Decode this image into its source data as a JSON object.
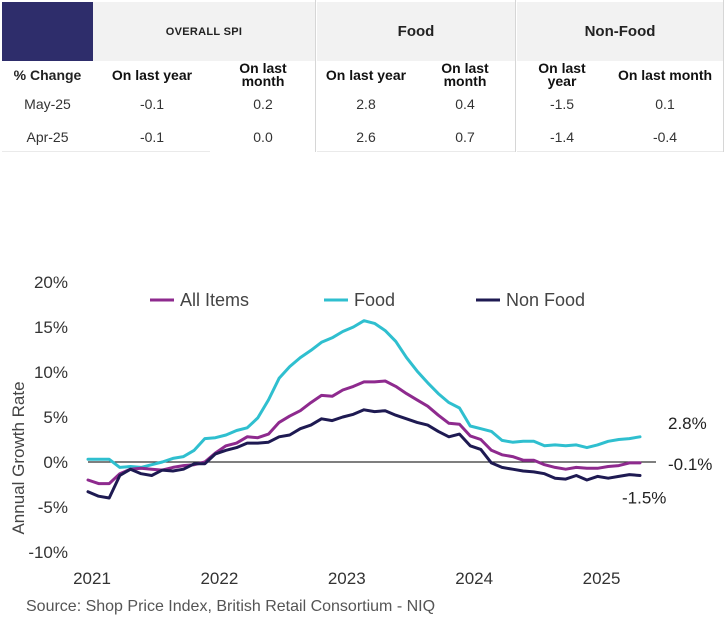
{
  "table": {
    "header_groups": [
      "OVERALL SPI",
      "Food",
      "Non-Food"
    ],
    "row_header": "% Change",
    "subheaders": [
      "On last year",
      "On last month",
      "On last year",
      "On last month",
      "On last year",
      "On last month"
    ],
    "rows": [
      {
        "label": "May-25",
        "values": [
          "-0.1",
          "0.2",
          "2.8",
          "0.4",
          "-1.5",
          "0.1"
        ]
      },
      {
        "label": "Apr-25",
        "values": [
          "-0.1",
          "0.0",
          "2.6",
          "0.7",
          "-1.4",
          "-0.4"
        ]
      }
    ]
  },
  "chart_data": {
    "type": "line",
    "title": "",
    "xlabel": "",
    "ylabel": "Annual Growth Rate",
    "ylim": [
      -10,
      20
    ],
    "yticks": [
      "20%",
      "15%",
      "10%",
      "5%",
      "0%",
      "-5%",
      "-10%"
    ],
    "ytick_values": [
      20,
      15,
      10,
      5,
      0,
      -5,
      -10
    ],
    "xticks": [
      "2021",
      "2022",
      "2023",
      "2024",
      "2025"
    ],
    "xtick_values": [
      0,
      12,
      24,
      36,
      48
    ],
    "legend": [
      "All Items",
      "Food",
      "Non Food"
    ],
    "legend_position": "top",
    "start": "Jan-2021",
    "series": [
      {
        "name": "All Items",
        "color": "#8e2a8e",
        "end_label": "-0.1%",
        "values": [
          -2.0,
          -2.4,
          -2.4,
          -1.3,
          -0.8,
          -0.7,
          -0.8,
          -0.9,
          -0.6,
          -0.4,
          -0.3,
          0.0,
          1.0,
          1.8,
          2.1,
          2.8,
          2.7,
          3.1,
          4.4,
          5.1,
          5.7,
          6.6,
          7.4,
          7.3,
          8.0,
          8.4,
          8.9,
          8.9,
          9.0,
          8.4,
          7.6,
          6.9,
          6.2,
          5.2,
          4.3,
          4.2,
          2.9,
          2.5,
          1.3,
          0.8,
          0.6,
          0.2,
          0.2,
          -0.3,
          -0.6,
          -0.8,
          -0.6,
          -0.7,
          -0.7,
          -0.5,
          -0.4,
          -0.1,
          -0.1
        ]
      },
      {
        "name": "Food",
        "color": "#2fbfcf",
        "end_label": "2.8%",
        "values": [
          0.3,
          0.3,
          0.3,
          -0.6,
          -0.5,
          -0.6,
          -0.3,
          0.0,
          0.4,
          0.6,
          1.3,
          2.6,
          2.7,
          3.0,
          3.5,
          3.8,
          4.9,
          6.9,
          9.3,
          10.6,
          11.6,
          12.4,
          13.3,
          13.8,
          14.5,
          15.0,
          15.7,
          15.4,
          14.6,
          13.4,
          11.6,
          10.1,
          8.8,
          7.6,
          6.6,
          6.0,
          4.0,
          3.7,
          3.4,
          2.4,
          2.2,
          2.3,
          2.3,
          1.8,
          1.9,
          1.8,
          1.9,
          1.6,
          1.9,
          2.3,
          2.5,
          2.6,
          2.8
        ]
      },
      {
        "name": "Non Food",
        "color": "#1e1a52",
        "end_label": "-1.5%",
        "values": [
          -3.3,
          -3.8,
          -4.0,
          -1.5,
          -0.8,
          -1.3,
          -1.5,
          -0.9,
          -1.0,
          -0.8,
          -0.2,
          -0.2,
          0.9,
          1.3,
          1.6,
          2.1,
          2.1,
          2.2,
          2.8,
          3.0,
          3.7,
          4.1,
          4.8,
          4.6,
          5.0,
          5.3,
          5.8,
          5.6,
          5.7,
          5.2,
          4.8,
          4.4,
          4.1,
          3.4,
          2.8,
          3.1,
          1.8,
          1.4,
          -0.1,
          -0.6,
          -0.8,
          -1.0,
          -1.1,
          -1.3,
          -1.8,
          -1.9,
          -1.5,
          -2.0,
          -1.6,
          -1.8,
          -1.6,
          -1.4,
          -1.5
        ]
      }
    ]
  },
  "source": "Source: Shop Price Index, British Retail Consortium - NIQ"
}
